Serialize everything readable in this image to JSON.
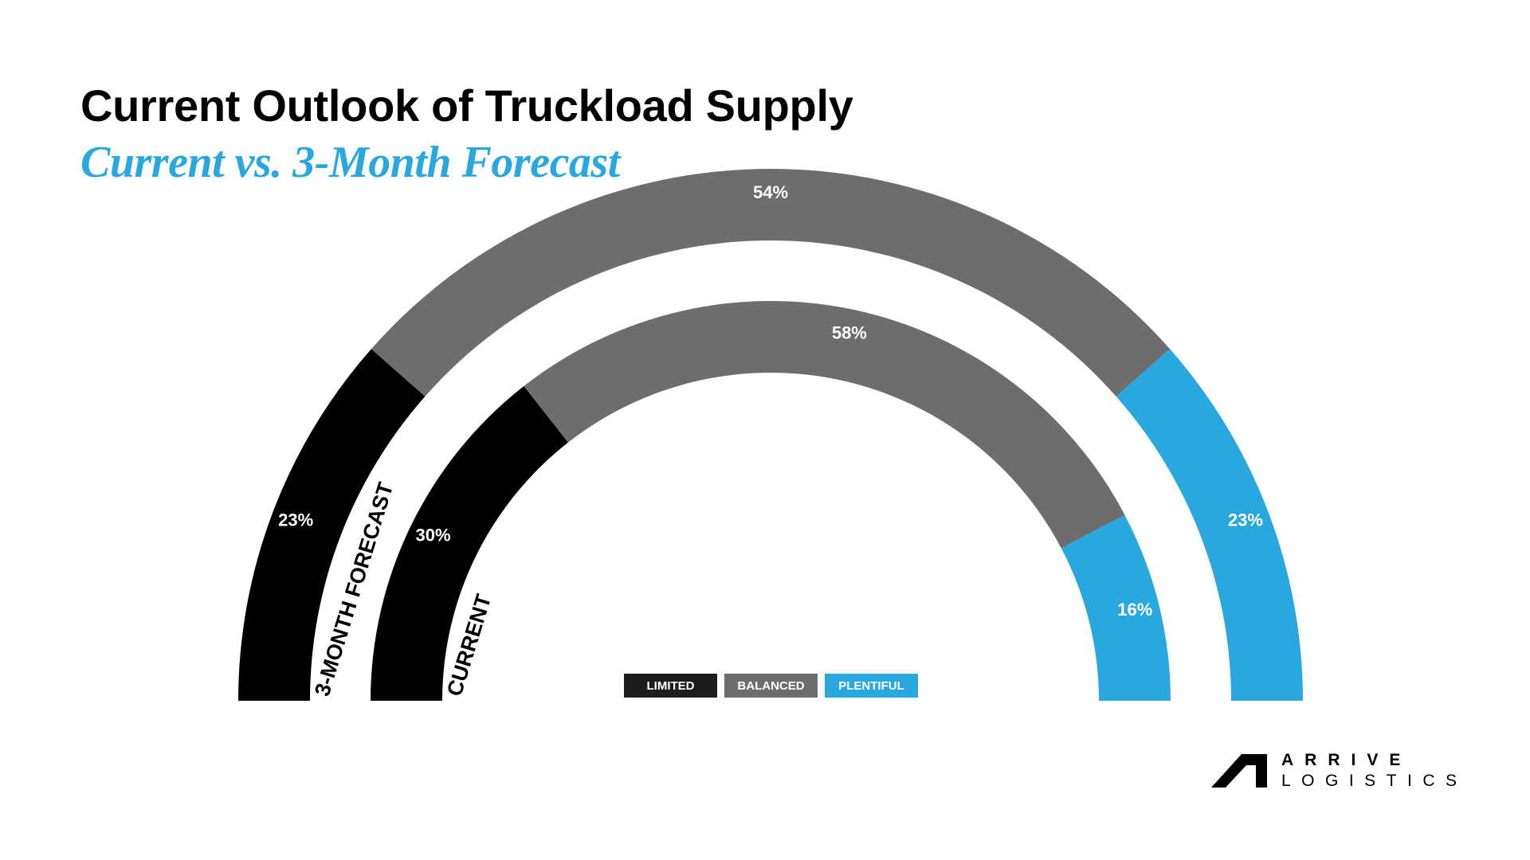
{
  "title": "Current Outlook of Truckload Supply",
  "subtitle": "Current vs. 3-Month Forecast",
  "colors": {
    "limited": "#000000",
    "balanced": "#6e6d6e",
    "plentiful": "#29a8e0",
    "subtitle": "#29a8e0"
  },
  "chart_data": {
    "type": "donut-gauge",
    "title": "Current Outlook of Truckload Supply",
    "subtitle": "Current vs. 3-Month Forecast",
    "categories": [
      "LIMITED",
      "BALANCED",
      "PLENTIFUL"
    ],
    "series": [
      {
        "name": "3-MONTH FORECAST",
        "ring": "outer",
        "values": [
          23,
          54,
          23
        ],
        "labels": [
          "23%",
          "54%",
          "23%"
        ]
      },
      {
        "name": "CURRENT",
        "ring": "inner",
        "values": [
          30,
          58,
          16
        ],
        "labels": [
          "30%",
          "58%",
          "16%"
        ]
      }
    ],
    "unit": "%",
    "legend_position": "bottom-center"
  },
  "legend": [
    {
      "label": "LIMITED",
      "color": "#000000"
    },
    {
      "label": "BALANCED",
      "color": "#6e6d6e"
    },
    {
      "label": "PLENTIFUL",
      "color": "#29a8e0"
    }
  ],
  "logo": {
    "line1": "ARRIVE",
    "line2": "LOGISTICS",
    "icon": "arrive-logo-icon"
  }
}
